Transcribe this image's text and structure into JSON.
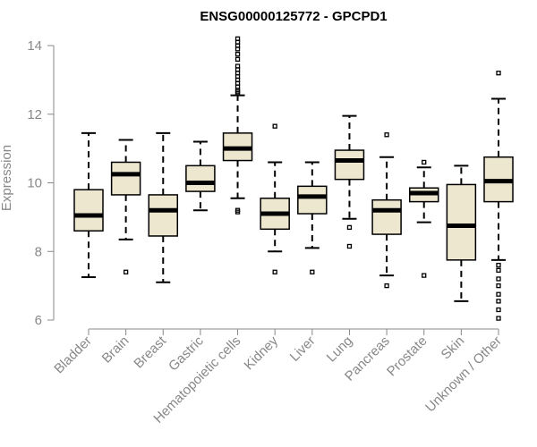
{
  "chart_data": {
    "type": "boxplot",
    "title": "ENSG00000125772 - GPCPD1",
    "xlabel": "",
    "ylabel": "Expression",
    "ylim": [
      6,
      14
    ],
    "yticks": [
      6,
      8,
      10,
      12,
      14
    ],
    "box_fill": "#ede7cf",
    "axis_color": "#888888",
    "categories": [
      "Bladder",
      "Brain",
      "Breast",
      "Gastric",
      "Hematopoietic cells",
      "Kidney",
      "Liver",
      "Lung",
      "Pancreas",
      "Prostate",
      "Skin",
      "Unknown / Other"
    ],
    "boxes": [
      {
        "name": "Bladder",
        "whisker_low": 7.25,
        "q1": 8.6,
        "median": 9.05,
        "q3": 9.8,
        "whisker_high": 11.45,
        "outliers": []
      },
      {
        "name": "Brain",
        "whisker_low": 8.35,
        "q1": 9.65,
        "median": 10.25,
        "q3": 10.6,
        "whisker_high": 11.25,
        "outliers": [
          7.4
        ]
      },
      {
        "name": "Breast",
        "whisker_low": 7.1,
        "q1": 8.45,
        "median": 9.2,
        "q3": 9.65,
        "whisker_high": 11.45,
        "outliers": []
      },
      {
        "name": "Gastric",
        "whisker_low": 9.2,
        "q1": 9.75,
        "median": 10.0,
        "q3": 10.5,
        "whisker_high": 11.2,
        "outliers": []
      },
      {
        "name": "Hematopoietic cells",
        "whisker_low": 9.55,
        "q1": 10.65,
        "median": 11.0,
        "q3": 11.45,
        "whisker_high": 12.55,
        "outliers": [
          9.15,
          9.2,
          12.6,
          12.65,
          12.7,
          12.8,
          12.9,
          13.0,
          13.1,
          13.2,
          13.3,
          13.4,
          13.6,
          13.75,
          13.9,
          14.0,
          14.1,
          14.2
        ]
      },
      {
        "name": "Kidney",
        "whisker_low": 8.0,
        "q1": 8.65,
        "median": 9.1,
        "q3": 9.55,
        "whisker_high": 10.6,
        "outliers": [
          7.4,
          11.65
        ]
      },
      {
        "name": "Liver",
        "whisker_low": 8.1,
        "q1": 9.1,
        "median": 9.6,
        "q3": 9.9,
        "whisker_high": 10.6,
        "outliers": [
          7.4
        ]
      },
      {
        "name": "Lung",
        "whisker_low": 8.95,
        "q1": 10.1,
        "median": 10.65,
        "q3": 10.95,
        "whisker_high": 11.95,
        "outliers": [
          8.15,
          8.7
        ]
      },
      {
        "name": "Pancreas",
        "whisker_low": 7.3,
        "q1": 8.5,
        "median": 9.2,
        "q3": 9.5,
        "whisker_high": 10.75,
        "outliers": [
          7.0,
          11.4
        ]
      },
      {
        "name": "Prostate",
        "whisker_low": 8.85,
        "q1": 9.45,
        "median": 9.7,
        "q3": 9.85,
        "whisker_high": 10.45,
        "outliers": [
          7.3,
          10.6
        ]
      },
      {
        "name": "Skin",
        "whisker_low": 6.55,
        "q1": 7.75,
        "median": 8.75,
        "q3": 9.95,
        "whisker_high": 10.5,
        "outliers": []
      },
      {
        "name": "Unknown / Other",
        "whisker_low": 7.75,
        "q1": 9.45,
        "median": 10.05,
        "q3": 10.75,
        "whisker_high": 12.45,
        "outliers": [
          6.05,
          6.3,
          6.55,
          6.75,
          7.0,
          7.2,
          7.45,
          7.6,
          13.2
        ]
      }
    ]
  }
}
